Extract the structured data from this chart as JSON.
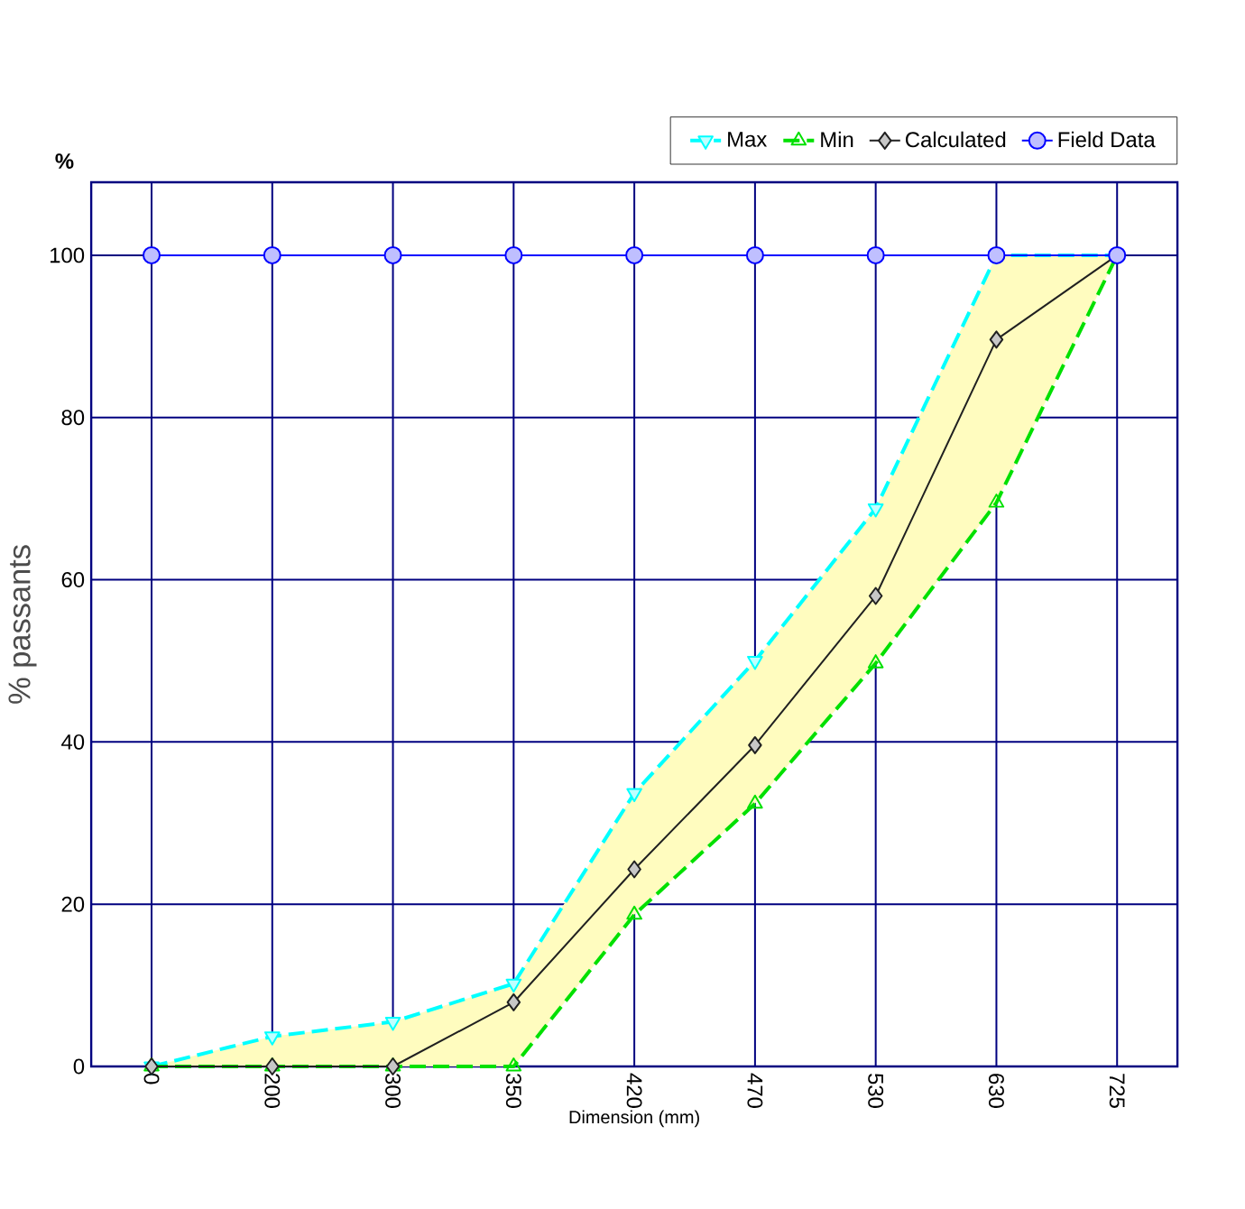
{
  "chart_data": {
    "type": "line",
    "xlabel": "Dimension (mm)",
    "ylabel": "% passants",
    "annotations": [
      "%"
    ],
    "categories": [
      "0",
      "200",
      "300",
      "350",
      "420",
      "470",
      "530",
      "630",
      "725"
    ],
    "ylim": [
      0,
      109
    ],
    "yticks": [
      0,
      20,
      40,
      60,
      80,
      100
    ],
    "grid": true,
    "legend": "top right",
    "series": [
      {
        "name": "Max",
        "color": "#00ffff",
        "marker": "triangle down",
        "line_style": "dashed",
        "values": [
          0,
          3.7,
          5.5,
          10.2,
          33.7,
          50,
          68.8,
          100,
          100
        ]
      },
      {
        "name": "Min",
        "color": "#00e000",
        "marker": "triangle",
        "line_style": "dashed",
        "values": [
          0,
          0,
          0,
          0,
          18.7,
          32.4,
          49.7,
          69.5,
          100
        ]
      },
      {
        "name": "Calculated",
        "color": "#202020",
        "marker": "diamond",
        "line_style": "solid",
        "values": [
          0,
          0,
          0,
          7.9,
          24.3,
          39.6,
          58,
          89.6,
          100
        ],
        "lower": [
          0,
          0,
          0,
          0,
          18.7,
          32.4,
          49.7,
          69.5,
          100
        ],
        "upper": [
          0,
          3.7,
          5.5,
          10.2,
          33.7,
          50,
          68.8,
          100,
          100
        ]
      },
      {
        "name": "Field Data",
        "color": "#0000ff",
        "marker": "circle",
        "line_style": "solid",
        "values": [
          100,
          100,
          100,
          100,
          100,
          100,
          100,
          100,
          100
        ]
      }
    ]
  }
}
